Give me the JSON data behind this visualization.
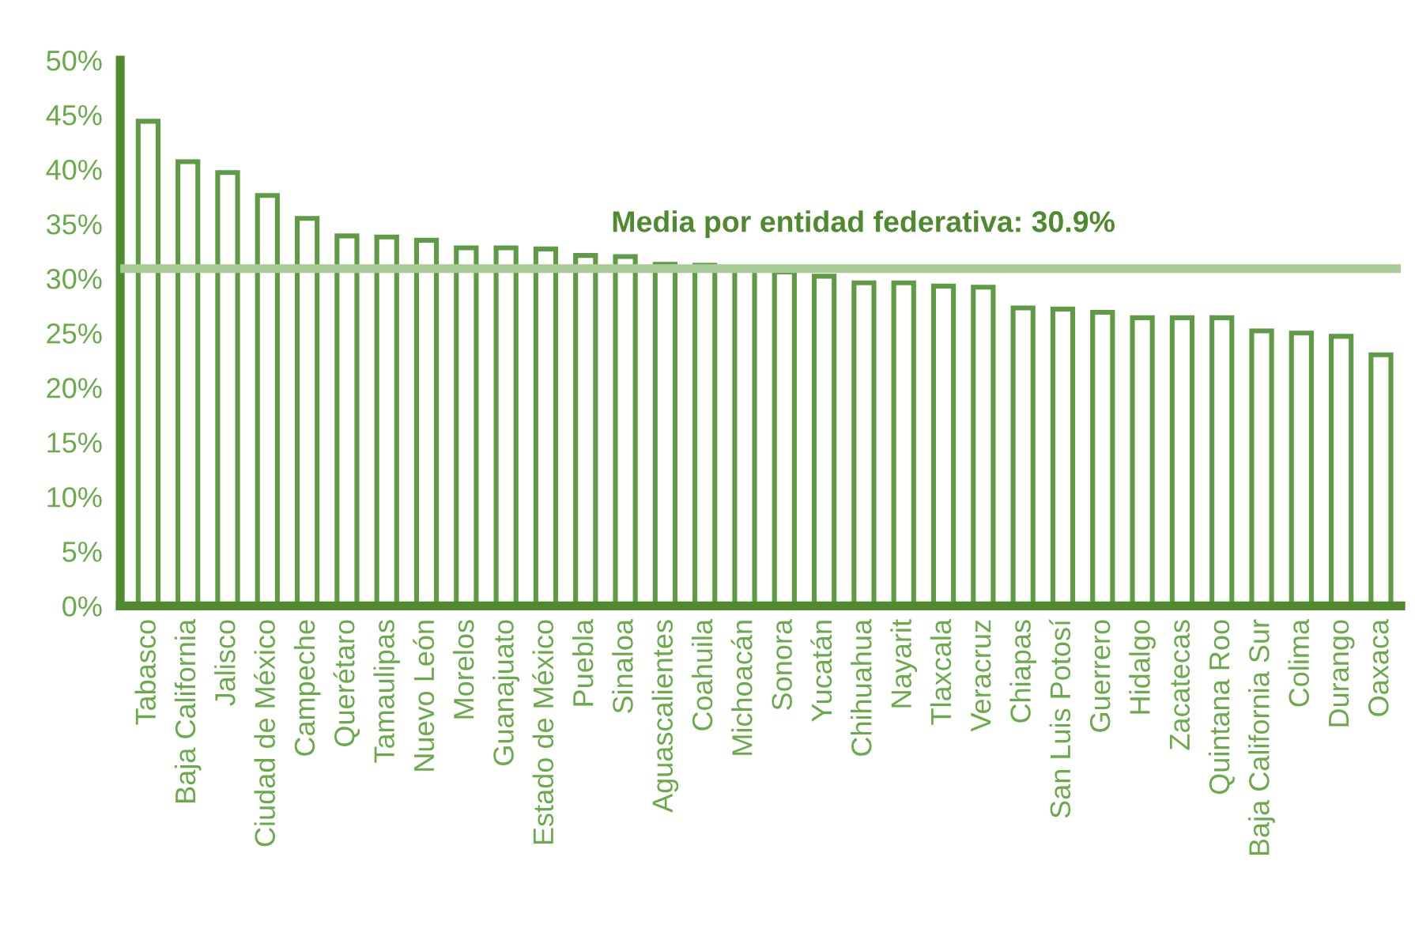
{
  "chart_data": {
    "type": "bar",
    "categories": [
      "Tabasco",
      "Baja California",
      "Jalisco",
      "Ciudad de México",
      "Campeche",
      "Querétaro",
      "Tamaulipas",
      "Nuevo León",
      "Morelos",
      "Guanajuato",
      "Estado de México",
      "Puebla",
      "Sinaloa",
      "Aguascalientes",
      "Coahuila",
      "Michoacán",
      "Sonora",
      "Yucatán",
      "Chihuahua",
      "Nayarit",
      "Tlaxcala",
      "Veracruz",
      "Chiapas",
      "San Luis Potosí",
      "Guerrero",
      "Hidalgo",
      "Zacatecas",
      "Quintana Roo",
      "Baja California Sur",
      "Colima",
      "Durango",
      "Oaxaca"
    ],
    "series": [
      {
        "color": "#5f9a45",
        "values": [
          44.4,
          40.7,
          39.7,
          37.6,
          35.5,
          33.9,
          33.8,
          33.5,
          32.8,
          32.8,
          32.7,
          32.1,
          32.0,
          31.3,
          31.2,
          30.9,
          30.6,
          30.2,
          29.6,
          29.6,
          29.3,
          29.2,
          27.3,
          27.2,
          26.9,
          26.4,
          26.4,
          26.4,
          25.2,
          25.0,
          24.7,
          23.0
        ]
      }
    ],
    "ylim": [
      0,
      50
    ],
    "yticks": [
      {
        "value": 0,
        "label": "0%"
      },
      {
        "value": 5,
        "label": "5%"
      },
      {
        "value": 10,
        "label": "10%"
      },
      {
        "value": 15,
        "label": "15%"
      },
      {
        "value": 20,
        "label": "20%"
      },
      {
        "value": 25,
        "label": "25%"
      },
      {
        "value": 30,
        "label": "30%"
      },
      {
        "value": 35,
        "label": "35%"
      },
      {
        "value": 40,
        "label": "40%"
      },
      {
        "value": 45,
        "label": "45%"
      },
      {
        "value": 50,
        "label": "50%"
      }
    ],
    "ref_lines": [
      {
        "axis": "y",
        "value": 30.9,
        "label": "Media por entidad federativa: 30.9%",
        "color": "#a8cc95",
        "line_style": "solid"
      }
    ],
    "grid": false,
    "legend": false
  }
}
